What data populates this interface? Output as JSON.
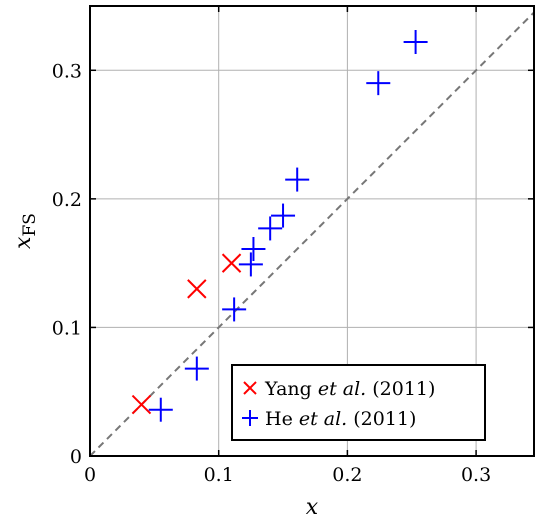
{
  "chart_data": {
    "type": "scatter",
    "xlabel": "x",
    "ylabel_main": "x",
    "ylabel_sub": "FS",
    "xlim": [
      0,
      0.345
    ],
    "ylim": [
      0,
      0.35
    ],
    "x_ticks": [
      0,
      0.1,
      0.2,
      0.3
    ],
    "x_tick_labels": [
      "0",
      "0.1",
      "0.2",
      "0.3"
    ],
    "y_ticks": [
      0,
      0.1,
      0.2,
      0.3
    ],
    "y_tick_labels": [
      "0",
      "0.1",
      "0.2",
      "0.3"
    ],
    "grid": true,
    "reference_line": "y = x",
    "legend_position": "bottom-right",
    "series": [
      {
        "name_pre": "Yang ",
        "name_italic": "et al.",
        "name_post": " (2011)",
        "marker": "x",
        "color": "#ff0000",
        "points": [
          {
            "x": 0.04,
            "y": 0.04
          },
          {
            "x": 0.083,
            "y": 0.13
          },
          {
            "x": 0.11,
            "y": 0.15
          }
        ]
      },
      {
        "name_pre": "He ",
        "name_italic": "et al.",
        "name_post": " (2011)",
        "marker": "+",
        "color": "#0000ff",
        "points": [
          {
            "x": 0.055,
            "y": 0.036
          },
          {
            "x": 0.083,
            "y": 0.068
          },
          {
            "x": 0.112,
            "y": 0.114
          },
          {
            "x": 0.125,
            "y": 0.149
          },
          {
            "x": 0.127,
            "y": 0.161
          },
          {
            "x": 0.14,
            "y": 0.177
          },
          {
            "x": 0.15,
            "y": 0.187
          },
          {
            "x": 0.161,
            "y": 0.215
          },
          {
            "x": 0.224,
            "y": 0.29
          },
          {
            "x": 0.253,
            "y": 0.322
          }
        ]
      }
    ]
  }
}
